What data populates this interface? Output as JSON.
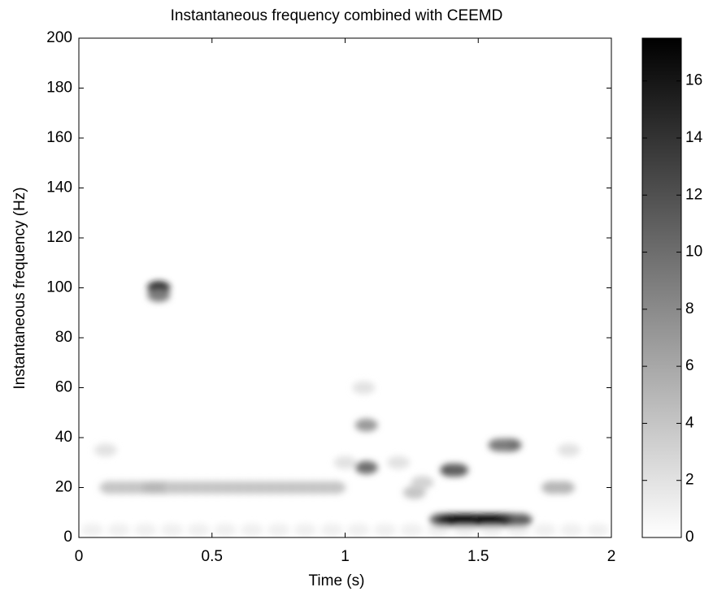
{
  "chart_data": {
    "type": "heatmap",
    "title": "Instantaneous frequency combined with CEEMD",
    "x_label": "Time (s)",
    "y_label": "Instantaneous frequency (Hz)",
    "xlim": [
      0,
      2
    ],
    "xticks": [
      0,
      0.5,
      1,
      1.5,
      2
    ],
    "ylim": [
      0,
      200
    ],
    "yticks": [
      0,
      20,
      40,
      60,
      80,
      100,
      120,
      140,
      160,
      180,
      200
    ],
    "colormap": [
      "#ffffff",
      "#000000"
    ],
    "clim": [
      0,
      17.5
    ],
    "cticks": [
      0,
      2,
      4,
      6,
      8,
      10,
      12,
      14,
      16
    ],
    "x": [
      0.3,
      0.3,
      0.12,
      0.16,
      0.2,
      0.24,
      0.28,
      0.32,
      0.36,
      0.4,
      0.44,
      0.48,
      0.52,
      0.56,
      0.6,
      0.64,
      0.68,
      0.72,
      0.76,
      0.8,
      0.84,
      0.88,
      0.92,
      0.96,
      0.05,
      0.15,
      0.25,
      0.35,
      0.45,
      0.55,
      0.65,
      0.75,
      0.85,
      0.95,
      1.05,
      1.15,
      1.25,
      1.35,
      1.45,
      1.55,
      1.65,
      1.75,
      1.85,
      1.95,
      1.08,
      1.08,
      1.07,
      1.0,
      0.1,
      1.2,
      1.26,
      1.29,
      1.4,
      1.42,
      1.6,
      1.62,
      1.58,
      1.78,
      1.82,
      1.84,
      1.36,
      1.39,
      1.42,
      1.45,
      1.48,
      1.51,
      1.54,
      1.57,
      1.6,
      1.63,
      1.66
    ],
    "y": [
      100,
      97,
      20,
      20,
      20,
      20,
      20,
      20,
      20,
      20,
      20,
      20,
      20,
      20,
      20,
      20,
      20,
      20,
      20,
      20,
      20,
      20,
      20,
      20,
      3,
      3,
      3,
      3,
      3,
      3,
      3,
      3,
      3,
      3,
      3,
      3,
      3,
      3,
      3,
      3,
      3,
      3,
      3,
      3,
      28,
      45,
      60,
      30,
      35,
      30,
      18,
      22,
      27,
      27,
      37,
      37,
      37,
      20,
      20,
      35,
      7,
      7,
      7,
      7,
      7,
      7,
      7,
      7,
      7,
      7,
      7
    ],
    "values": [
      16,
      9,
      4,
      4,
      4,
      4,
      5,
      5,
      4,
      4,
      4,
      4,
      4,
      4,
      4,
      4,
      4,
      4,
      4,
      4,
      4,
      4,
      4,
      4,
      1,
      1,
      1,
      1,
      1,
      1,
      1,
      1,
      1,
      1,
      1,
      1,
      1,
      1,
      1,
      1,
      1,
      1,
      1,
      1,
      10,
      7,
      2,
      2,
      2,
      2,
      4,
      3,
      12,
      11,
      10,
      10,
      9,
      5,
      5,
      2,
      11,
      15,
      16,
      17,
      17,
      16,
      17,
      17,
      16,
      14,
      11
    ]
  }
}
